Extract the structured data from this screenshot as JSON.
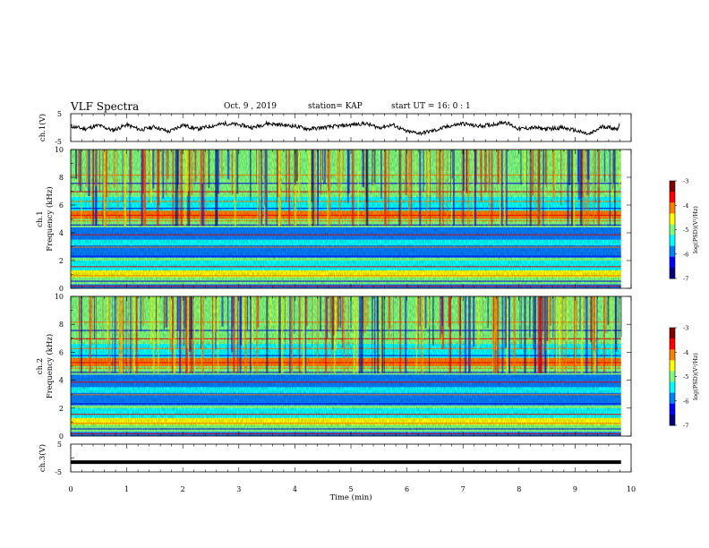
{
  "header": {
    "title": "VLF Spectra",
    "date": "Oct. 9 , 2019",
    "station": "station= KAP",
    "start_time": "start UT = 16: 0 : 1"
  },
  "colors": {
    "colormap": [
      "#00007f",
      "#0000ff",
      "#007fff",
      "#00ffff",
      "#7fff7f",
      "#ffff00",
      "#ff7f00",
      "#ff0000",
      "#7f0000"
    ],
    "trace": "#000000",
    "axes": "#000000",
    "background": "#ffffff"
  },
  "chart_data": [
    {
      "type": "line",
      "panel": "ch1-waveform",
      "ylabel": "ch.1(V)",
      "ylim": [
        -5,
        5
      ],
      "yticks": [
        "5",
        "-5"
      ],
      "xlim": [
        0,
        10
      ],
      "x": [
        0,
        0.25,
        0.5,
        0.75,
        1.0,
        1.25,
        1.5,
        1.75,
        2.0,
        2.25,
        2.5,
        2.75,
        3.0,
        3.25,
        3.5,
        3.75,
        4.0,
        4.25,
        4.5,
        4.75,
        5.0,
        5.25,
        5.5,
        5.75,
        6.0,
        6.25,
        6.5,
        6.75,
        7.0,
        7.25,
        7.5,
        7.75,
        8.0,
        8.25,
        8.5,
        8.75,
        9.0,
        9.25,
        9.5,
        9.75,
        9.8
      ],
      "values": [
        0.5,
        -0.5,
        0.8,
        -1.0,
        1.0,
        -0.8,
        0.3,
        -1.5,
        1.0,
        -0.5,
        0.5,
        1.5,
        1.0,
        0.0,
        1.5,
        1.0,
        0.5,
        -0.5,
        0.0,
        0.5,
        1.0,
        1.5,
        0.0,
        1.0,
        -1.5,
        -2.0,
        -1.0,
        0.5,
        1.5,
        0.5,
        1.0,
        2.0,
        -0.5,
        0.0,
        -0.5,
        0.0,
        -1.0,
        -2.5,
        0.5,
        -0.5,
        1.5
      ]
    },
    {
      "type": "heatmap",
      "panel": "ch1-spectrogram",
      "ylabel": "ch.1 Frequency (kHz)",
      "xlim": [
        0,
        10
      ],
      "ylim": [
        0,
        10
      ],
      "yticks": [
        "0",
        "2",
        "4",
        "6",
        "8",
        "10"
      ],
      "data_end_min": 9.82,
      "colorbar": {
        "label": "log(PSD)(V²/Hz)",
        "ticks": [
          "-3",
          "-4",
          "-5",
          "-6",
          "-7"
        ],
        "range": [
          -7,
          -3
        ]
      }
    },
    {
      "type": "heatmap",
      "panel": "ch2-spectrogram",
      "ylabel": "ch.2 Frequency (kHz)",
      "xlim": [
        0,
        10
      ],
      "ylim": [
        0,
        10
      ],
      "yticks": [
        "0",
        "2",
        "4",
        "6",
        "8",
        "10"
      ],
      "data_end_min": 9.82,
      "colorbar": {
        "label": "log(PSD)(V²/Hz)",
        "ticks": [
          "-3",
          "-4",
          "-5",
          "-6",
          "-7"
        ],
        "range": [
          -7,
          -3
        ]
      }
    },
    {
      "type": "line",
      "panel": "ch3-waveform",
      "ylabel": "ch.3(V)",
      "ylim": [
        -5,
        5
      ],
      "yticks": [
        "5",
        "-5"
      ],
      "xlim": [
        0,
        10
      ],
      "x": [
        0,
        9.82
      ],
      "values": [
        -1.5,
        -1.5
      ]
    }
  ],
  "x_axis": {
    "label": "Time (min)",
    "ticks": [
      "0",
      "1",
      "2",
      "3",
      "4",
      "5",
      "6",
      "7",
      "8",
      "9",
      "10"
    ]
  }
}
